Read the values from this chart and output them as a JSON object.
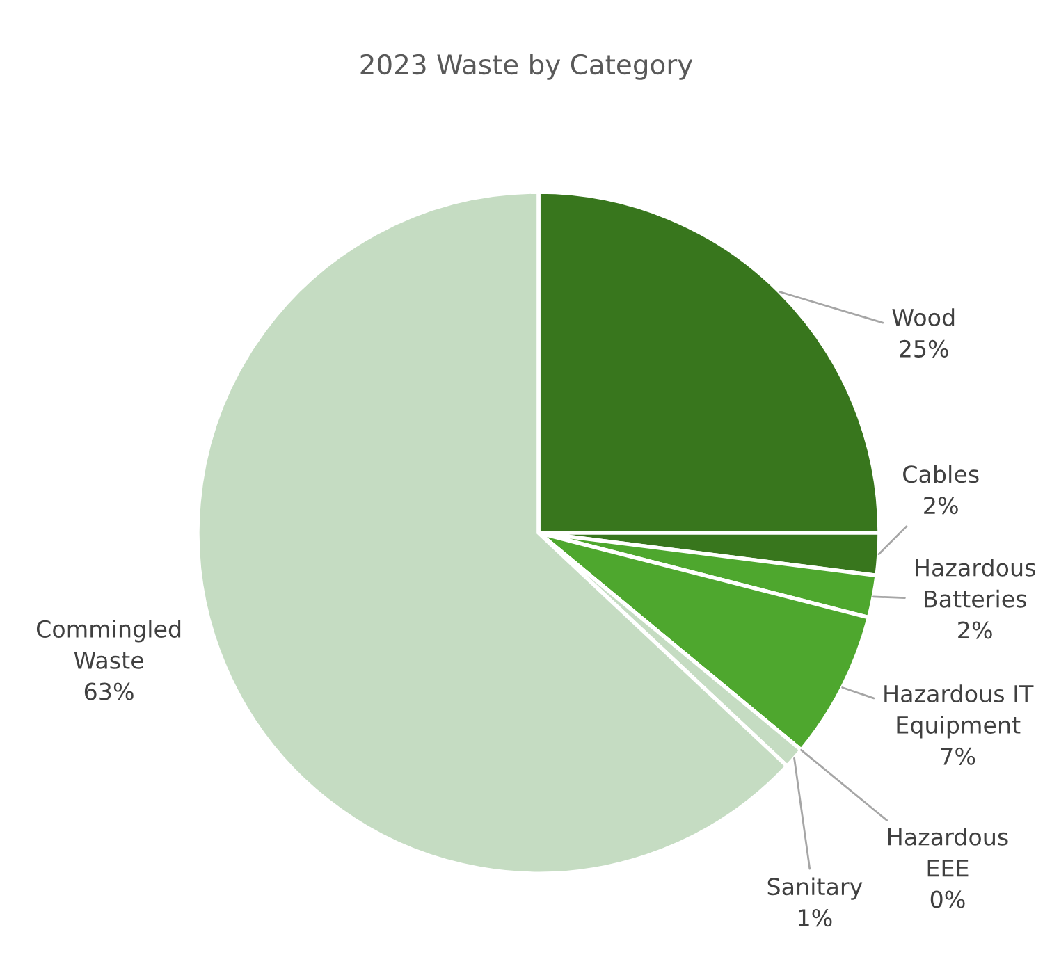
{
  "chart_data": {
    "type": "pie",
    "title": "2023 Waste by Category",
    "categories": [
      "Wood",
      "Cables",
      "Hazardous Batteries",
      "Hazardous IT Equipment",
      "Hazardous EEE",
      "Sanitary",
      "Commingled Waste"
    ],
    "values": [
      25,
      2,
      2,
      7,
      0,
      1,
      63
    ],
    "colors": [
      "#38761d",
      "#38761d",
      "#4ea72e",
      "#4ea72e",
      "#4ea72e",
      "#c5dcc2",
      "#c5dcc2"
    ],
    "value_labels": [
      "25%",
      "2%",
      "2%",
      "7%",
      "0%",
      "1%",
      "63%"
    ]
  }
}
